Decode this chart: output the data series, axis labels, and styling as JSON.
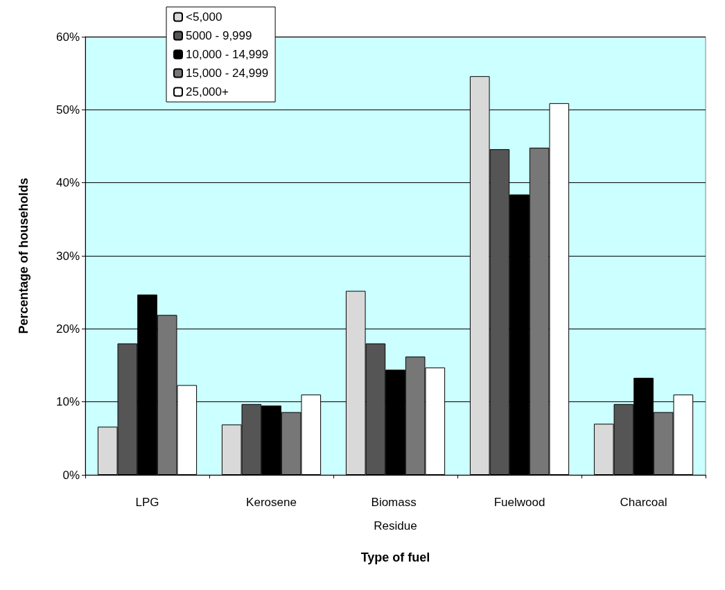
{
  "chart_data": {
    "type": "bar",
    "xlabel": "Type of fuel",
    "ylabel": "Percentage of households",
    "categories": [
      "LPG",
      "Kerosene",
      "Biomass Residue",
      "Fuelwood",
      "Charcoal"
    ],
    "series": [
      {
        "name": "<5,000",
        "color": "#d9d9d9",
        "values": [
          6.6,
          6.9,
          25.2,
          54.6,
          7.0
        ]
      },
      {
        "name": "5000 - 9,999",
        "color": "#555555",
        "values": [
          18.0,
          9.7,
          18.0,
          44.6,
          9.7
        ]
      },
      {
        "name": "10,000 - 14,999",
        "color": "#000000",
        "values": [
          24.7,
          9.5,
          14.4,
          38.4,
          13.3
        ]
      },
      {
        "name": "15,000 - 24,999",
        "color": "#777777",
        "values": [
          21.9,
          8.6,
          16.2,
          44.8,
          8.6
        ]
      },
      {
        "name": "25,000+",
        "color": "#ffffff",
        "values": [
          12.3,
          11.0,
          14.7,
          50.9,
          11.0
        ]
      }
    ],
    "ylim": [
      0,
      60
    ],
    "yticks": [
      {
        "value": 0,
        "label": "0%"
      },
      {
        "value": 10,
        "label": "10%"
      },
      {
        "value": 20,
        "label": "20%"
      },
      {
        "value": 30,
        "label": "30%"
      },
      {
        "value": 40,
        "label": "40%"
      },
      {
        "value": 50,
        "label": "50%"
      },
      {
        "value": 60,
        "label": "60%"
      }
    ],
    "grid": "y",
    "legend": "top left"
  }
}
